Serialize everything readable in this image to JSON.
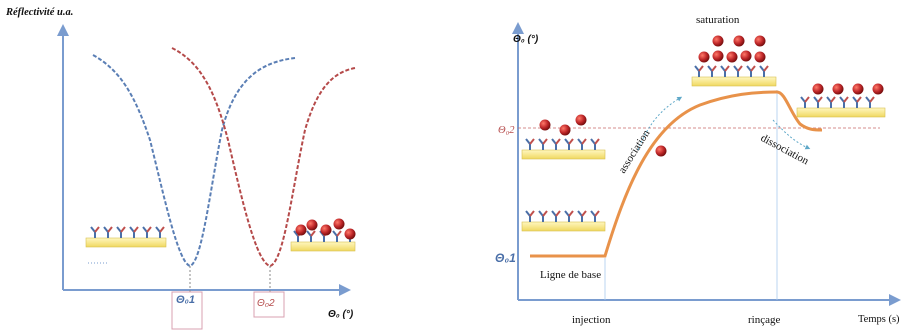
{
  "left_panel": {
    "y_axis_label": "Réflectivité u.a.",
    "x_axis_label": "Θ₀ (°)",
    "marker_1": "Θ₀1",
    "marker_2": "Θ₀2",
    "curve_colors": {
      "curve_1": "#5b7fb5",
      "curve_2": "#b54a4a"
    }
  },
  "right_panel": {
    "y_axis_label": "Θ₀ (°)",
    "x_axis_label": "Temps (s)",
    "level_1": "Θ₀1",
    "level_2": "Θ₀2",
    "phase_labels": {
      "baseline": "Ligne de base",
      "association": "association",
      "saturation": "saturation",
      "dissociation": "dissociation"
    },
    "time_labels": {
      "injection": "injection",
      "rincage": "rinçage"
    },
    "sensorgram_color": "#e8924a"
  },
  "colors": {
    "axis": "#7a9ccf",
    "antibody_arm_blue": "#4a6fa8",
    "antibody_arm_red": "#c0504d",
    "substrate": "#f5e78a",
    "analyte": "#c0282a"
  }
}
